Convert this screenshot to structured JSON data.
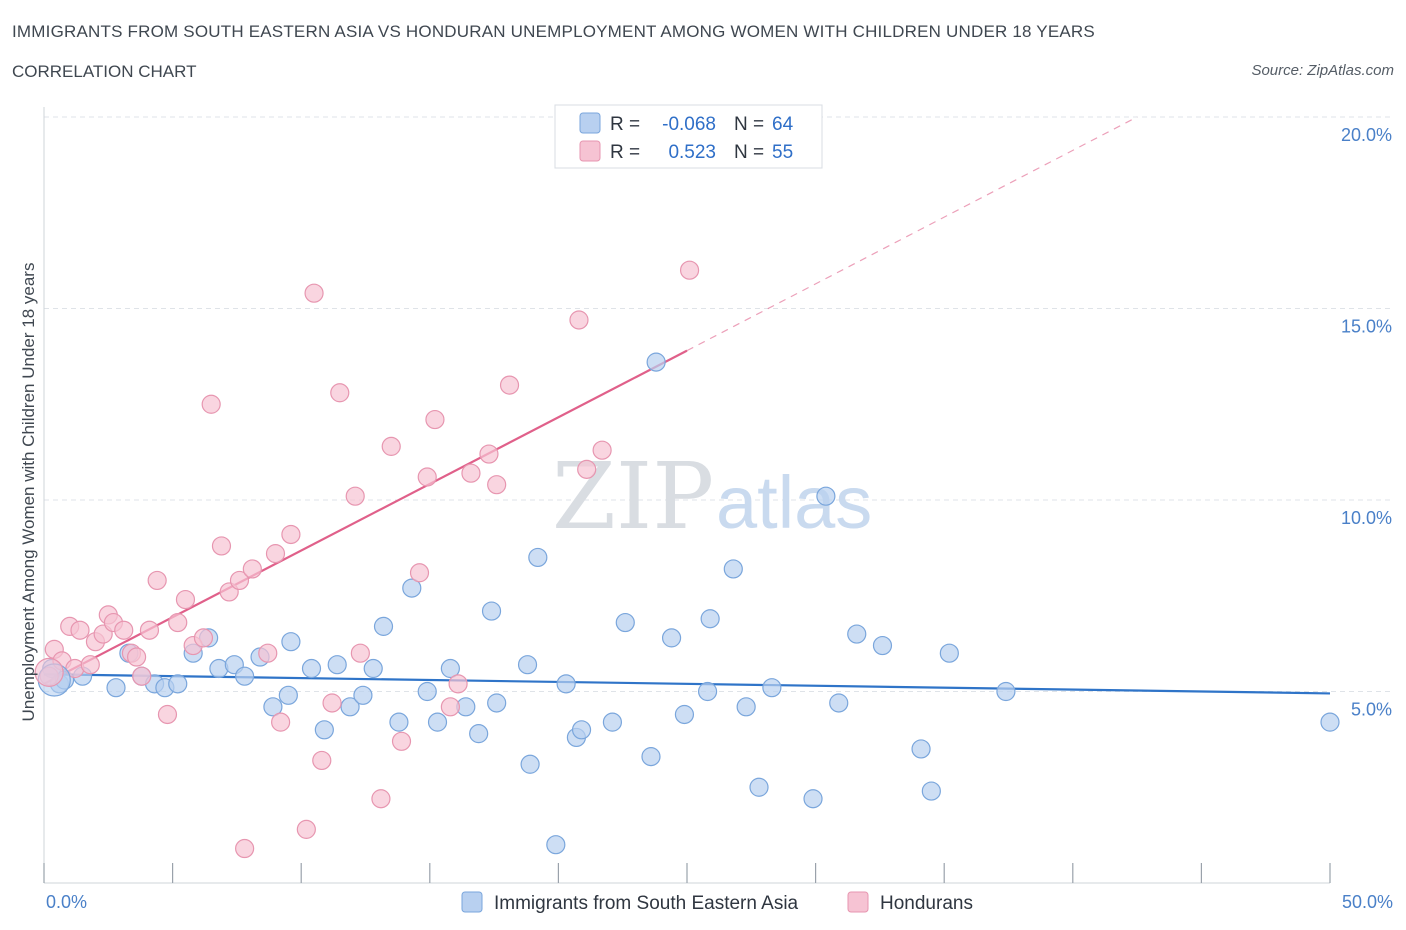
{
  "title": "IMMIGRANTS FROM SOUTH EASTERN ASIA VS HONDURAN UNEMPLOYMENT AMONG WOMEN WITH CHILDREN UNDER 18 YEARS",
  "subtitle": "CORRELATION CHART",
  "source": "Source: ZipAtlas.com",
  "watermark": {
    "zip": "ZIP",
    "atlas": "atlas"
  },
  "colors": {
    "blue_fill": "#b8d0f0",
    "blue_stroke": "#7aa6dc",
    "blue_line": "#2f74c8",
    "pink_fill": "#f6c3d3",
    "pink_stroke": "#e796b0",
    "pink_line": "#e0608a",
    "grid": "#dfe3e8",
    "tick_text": "#4a80c8"
  },
  "chart_data": {
    "type": "scatter",
    "xlabel": "",
    "ylabel": "Unemployment Among Women with Children Under 18 years",
    "xlim": [
      0,
      50
    ],
    "ylim": [
      0,
      20
    ],
    "x_tick_labels": [
      {
        "value": 0,
        "label": "0.0%"
      },
      {
        "value": 50,
        "label": "50.0%"
      }
    ],
    "y_tick_labels": [
      {
        "value": 5,
        "label": "5.0%"
      },
      {
        "value": 10,
        "label": "10.0%"
      },
      {
        "value": 15,
        "label": "15.0%"
      },
      {
        "value": 20,
        "label": "20.0%"
      }
    ],
    "legend_stats": [
      {
        "r_label": "R =",
        "r": "-0.068",
        "n_label": "N =",
        "n": "64"
      },
      {
        "r_label": "R =",
        "r": "0.523",
        "n_label": "N =",
        "n": "55"
      }
    ],
    "series": [
      {
        "name": "Immigrants from South Eastern Asia",
        "color": "blue",
        "trend": {
          "x0": 0,
          "y0": 5.45,
          "x1": 50,
          "y1": 4.95
        },
        "points": [
          [
            0.3,
            5.6
          ],
          [
            0.6,
            5.2
          ],
          [
            0.8,
            5.3
          ],
          [
            1.5,
            5.4
          ],
          [
            2.8,
            5.1
          ],
          [
            3.3,
            6.0
          ],
          [
            3.8,
            5.4
          ],
          [
            4.3,
            5.2
          ],
          [
            4.7,
            5.1
          ],
          [
            5.2,
            5.2
          ],
          [
            5.8,
            6.0
          ],
          [
            6.4,
            6.4
          ],
          [
            6.8,
            5.6
          ],
          [
            7.4,
            5.7
          ],
          [
            7.8,
            5.4
          ],
          [
            8.4,
            5.9
          ],
          [
            8.9,
            4.6
          ],
          [
            9.5,
            4.9
          ],
          [
            9.6,
            6.3
          ],
          [
            10.4,
            5.6
          ],
          [
            10.9,
            4.0
          ],
          [
            11.4,
            5.7
          ],
          [
            11.9,
            4.6
          ],
          [
            12.4,
            4.9
          ],
          [
            12.8,
            5.6
          ],
          [
            13.2,
            6.7
          ],
          [
            13.8,
            4.2
          ],
          [
            14.3,
            7.7
          ],
          [
            14.9,
            5.0
          ],
          [
            15.3,
            4.2
          ],
          [
            15.8,
            5.6
          ],
          [
            16.4,
            4.6
          ],
          [
            16.9,
            3.9
          ],
          [
            17.4,
            7.1
          ],
          [
            17.6,
            4.7
          ],
          [
            18.8,
            5.7
          ],
          [
            18.9,
            3.1
          ],
          [
            19.2,
            8.5
          ],
          [
            19.9,
            1.0
          ],
          [
            20.7,
            3.8
          ],
          [
            20.9,
            4.0
          ],
          [
            22.1,
            4.2
          ],
          [
            22.6,
            6.8
          ],
          [
            23.6,
            3.3
          ],
          [
            24.4,
            6.4
          ],
          [
            24.9,
            4.4
          ],
          [
            25.8,
            5.0
          ],
          [
            25.9,
            6.9
          ],
          [
            26.8,
            8.2
          ],
          [
            27.3,
            4.6
          ],
          [
            27.8,
            2.5
          ],
          [
            28.3,
            5.1
          ],
          [
            29.9,
            2.2
          ],
          [
            30.4,
            10.1
          ],
          [
            30.9,
            4.7
          ],
          [
            31.6,
            6.5
          ],
          [
            32.6,
            6.2
          ],
          [
            34.1,
            3.5
          ],
          [
            34.5,
            2.4
          ],
          [
            35.2,
            6.0
          ],
          [
            37.4,
            5.0
          ],
          [
            50.0,
            4.2
          ],
          [
            23.8,
            13.6
          ],
          [
            20.3,
            5.2
          ]
        ]
      },
      {
        "name": "Hondurans",
        "color": "pink",
        "trend": {
          "x0": 0,
          "y0": 5.2,
          "x1": 25,
          "y1": 13.9,
          "dash_to_x": 42.5,
          "dash_to_y": 20.0
        },
        "points": [
          [
            0.2,
            5.4
          ],
          [
            0.4,
            6.1
          ],
          [
            0.7,
            5.8
          ],
          [
            1.0,
            6.7
          ],
          [
            1.2,
            5.6
          ],
          [
            1.4,
            6.6
          ],
          [
            1.8,
            5.7
          ],
          [
            2.0,
            6.3
          ],
          [
            2.3,
            6.5
          ],
          [
            2.5,
            7.0
          ],
          [
            2.7,
            6.8
          ],
          [
            3.1,
            6.6
          ],
          [
            3.4,
            6.0
          ],
          [
            3.6,
            5.9
          ],
          [
            3.8,
            5.4
          ],
          [
            4.1,
            6.6
          ],
          [
            4.4,
            7.9
          ],
          [
            4.8,
            4.4
          ],
          [
            5.2,
            6.8
          ],
          [
            5.5,
            7.4
          ],
          [
            5.8,
            6.2
          ],
          [
            6.2,
            6.4
          ],
          [
            6.5,
            12.5
          ],
          [
            6.9,
            8.8
          ],
          [
            7.2,
            7.6
          ],
          [
            7.6,
            7.9
          ],
          [
            7.8,
            0.9
          ],
          [
            8.1,
            8.2
          ],
          [
            8.7,
            6.0
          ],
          [
            9.0,
            8.6
          ],
          [
            9.2,
            4.2
          ],
          [
            9.6,
            9.1
          ],
          [
            10.2,
            1.4
          ],
          [
            10.5,
            15.4
          ],
          [
            10.8,
            3.2
          ],
          [
            11.2,
            4.7
          ],
          [
            11.5,
            12.8
          ],
          [
            12.1,
            10.1
          ],
          [
            12.3,
            6.0
          ],
          [
            13.1,
            2.2
          ],
          [
            13.5,
            11.4
          ],
          [
            13.9,
            3.7
          ],
          [
            14.6,
            8.1
          ],
          [
            14.9,
            10.6
          ],
          [
            15.2,
            12.1
          ],
          [
            15.8,
            4.6
          ],
          [
            16.1,
            5.2
          ],
          [
            16.6,
            10.7
          ],
          [
            17.3,
            11.2
          ],
          [
            17.6,
            10.4
          ],
          [
            18.1,
            13.0
          ],
          [
            20.8,
            14.7
          ],
          [
            21.1,
            10.8
          ],
          [
            21.7,
            11.3
          ],
          [
            25.1,
            16.0
          ]
        ]
      }
    ]
  }
}
